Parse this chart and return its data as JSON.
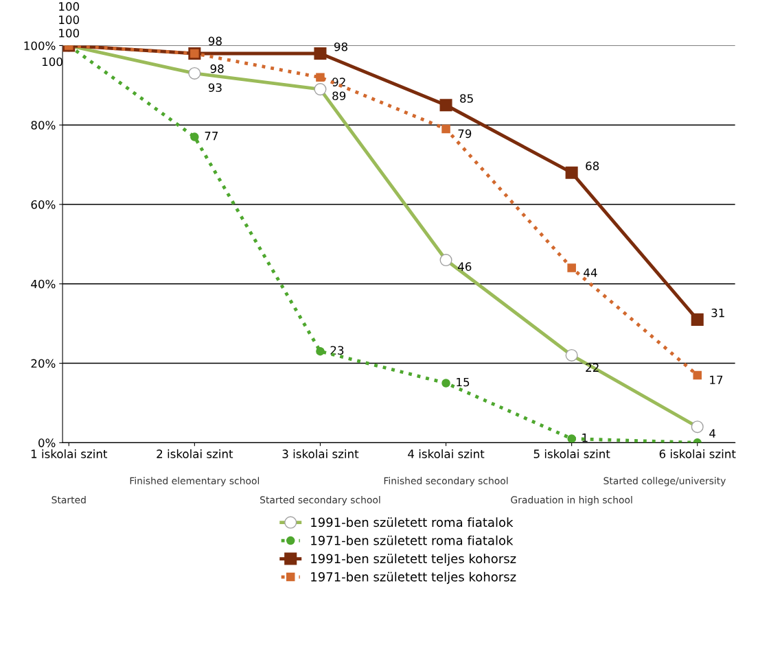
{
  "chart_data": {
    "type": "line",
    "categories": [
      "1 iskolai szint",
      "2 iskolai szint",
      "3 iskolai szint",
      "4 iskolai szint",
      "5 iskolai szint",
      "6 iskolai szint"
    ],
    "series": [
      {
        "name": "1991-ben született roma fiatalok",
        "color": "#9bbb59",
        "marker": "circle",
        "line_style": "solid",
        "values": [
          100,
          93,
          89,
          46,
          22,
          4
        ],
        "value_labels": [
          "100",
          "93",
          "89",
          "46",
          "22",
          "4"
        ]
      },
      {
        "name": "1971-ben született roma fiatalok",
        "color": "#4ea72e",
        "marker": "circle",
        "line_style": "dotted",
        "values": [
          100,
          77,
          23,
          15,
          1,
          0
        ],
        "value_labels": [
          "100",
          "77",
          "23",
          "15",
          "1",
          null
        ]
      },
      {
        "name": "1991-ben született teljes kohorsz",
        "color": "#7b2c0c",
        "marker": "square",
        "line_style": "solid",
        "values": [
          100,
          98,
          98,
          85,
          68,
          31
        ],
        "value_labels": [
          "100",
          "98",
          "98",
          "85",
          "68",
          "31"
        ]
      },
      {
        "name": "1971-ben született teljes kohorsz",
        "color": "#d2692e",
        "marker": "square",
        "line_style": "dotted",
        "values": [
          100,
          98,
          92,
          79,
          44,
          17
        ],
        "value_labels": [
          "100",
          "98",
          "92",
          "79",
          "44",
          "17"
        ]
      }
    ],
    "ylim": [
      0,
      100
    ],
    "yticks": [
      {
        "value": 0,
        "label": "0%"
      },
      {
        "value": 20,
        "label": "20%"
      },
      {
        "value": 40,
        "label": "40%"
      },
      {
        "value": 60,
        "label": "60%"
      },
      {
        "value": 80,
        "label": "80%"
      },
      {
        "value": 100,
        "label": "100%"
      }
    ],
    "grid": "y",
    "legend": "bottom",
    "annotations": [
      "Started",
      "Finished elementary school",
      "Started secondary school",
      "Finished secondary school",
      "Graduation in high school",
      "Started college/university"
    ]
  }
}
